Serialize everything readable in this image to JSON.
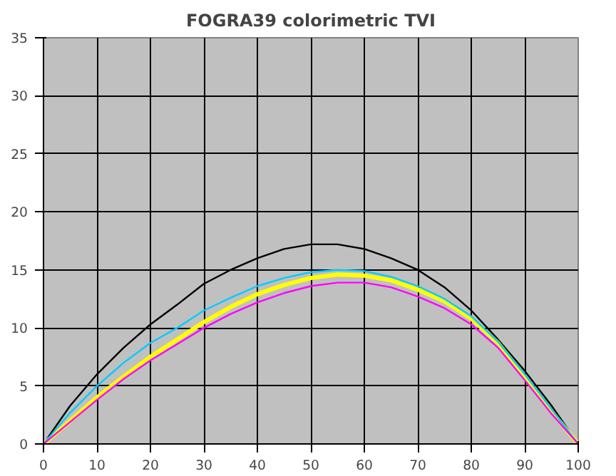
{
  "chart_data": {
    "type": "line",
    "title": "FOGRA39 colorimetric TVI",
    "x": [
      0,
      5,
      10,
      15,
      20,
      25,
      30,
      35,
      40,
      45,
      50,
      55,
      60,
      65,
      70,
      75,
      80,
      85,
      90,
      95,
      100
    ],
    "series": [
      {
        "color": "#000000",
        "values": [
          0,
          3.3,
          6,
          8.3,
          10.3,
          12,
          13.8,
          15,
          16,
          16.8,
          17.2,
          17.2,
          16.8,
          16,
          15,
          13.5,
          11.5,
          9,
          6.3,
          3.3,
          0
        ]
      },
      {
        "color": "#ffff00",
        "values": [
          0,
          2,
          4,
          5.8,
          7.5,
          9,
          10.5,
          11.8,
          12.9,
          13.7,
          14.3,
          14.6,
          14.5,
          14.1,
          13.3,
          12.3,
          10.8,
          8.7,
          5.8,
          2.8,
          0
        ]
      },
      {
        "color": "#00ccff",
        "values": [
          0,
          2.7,
          5,
          7,
          8.7,
          10,
          11.5,
          12.6,
          13.6,
          14.3,
          14.8,
          15,
          14.9,
          14.4,
          13.6,
          12.5,
          11,
          8.8,
          6,
          3,
          0
        ]
      },
      {
        "color": "#ff00ff",
        "values": [
          0,
          1.9,
          3.8,
          5.6,
          7.2,
          8.6,
          10,
          11.2,
          12.2,
          13,
          13.6,
          13.9,
          13.9,
          13.5,
          12.7,
          11.7,
          10.3,
          8.3,
          5.5,
          2.6,
          0
        ]
      }
    ],
    "xlim": [
      0,
      100
    ],
    "xticks": [
      0,
      10,
      20,
      30,
      40,
      50,
      60,
      70,
      80,
      90,
      100
    ],
    "ylim": [
      0,
      35
    ],
    "yticks": [
      0,
      5,
      10,
      15,
      20,
      25,
      30,
      35
    ],
    "grid": true,
    "marker": "none",
    "line_style": "solid"
  }
}
